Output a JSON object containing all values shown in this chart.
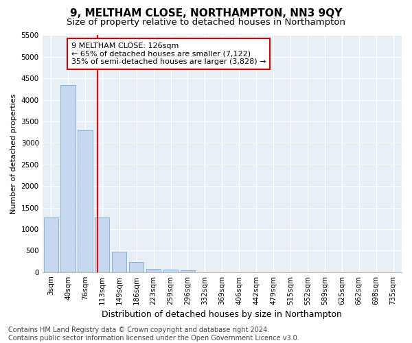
{
  "title": "9, MELTHAM CLOSE, NORTHAMPTON, NN3 9QY",
  "subtitle": "Size of property relative to detached houses in Northampton",
  "xlabel": "Distribution of detached houses by size in Northampton",
  "ylabel": "Number of detached properties",
  "categories": [
    "3sqm",
    "40sqm",
    "76sqm",
    "113sqm",
    "149sqm",
    "186sqm",
    "223sqm",
    "259sqm",
    "296sqm",
    "332sqm",
    "369sqm",
    "406sqm",
    "442sqm",
    "479sqm",
    "515sqm",
    "552sqm",
    "589sqm",
    "625sqm",
    "662sqm",
    "698sqm",
    "735sqm"
  ],
  "values": [
    1270,
    4350,
    3300,
    1270,
    480,
    230,
    80,
    60,
    50,
    0,
    0,
    0,
    0,
    0,
    0,
    0,
    0,
    0,
    0,
    0,
    0
  ],
  "bar_color": "#c5d8ee",
  "bar_edge_color": "#7aadd4",
  "red_line_x": 2.72,
  "annotation_text": "9 MELTHAM CLOSE: 126sqm\n← 65% of detached houses are smaller (7,122)\n35% of semi-detached houses are larger (3,828) →",
  "annotation_box_facecolor": "#ffffff",
  "annotation_box_edgecolor": "#cc0000",
  "ylim": [
    0,
    5500
  ],
  "yticks": [
    0,
    500,
    1000,
    1500,
    2000,
    2500,
    3000,
    3500,
    4000,
    4500,
    5000,
    5500
  ],
  "footnote": "Contains HM Land Registry data © Crown copyright and database right 2024.\nContains public sector information licensed under the Open Government Licence v3.0.",
  "fig_facecolor": "#ffffff",
  "plot_facecolor": "#e8eef5",
  "grid_color": "#ffffff",
  "title_fontsize": 11,
  "subtitle_fontsize": 9.5,
  "xlabel_fontsize": 9,
  "ylabel_fontsize": 8,
  "tick_fontsize": 7.5,
  "annotation_fontsize": 8,
  "footnote_fontsize": 7
}
